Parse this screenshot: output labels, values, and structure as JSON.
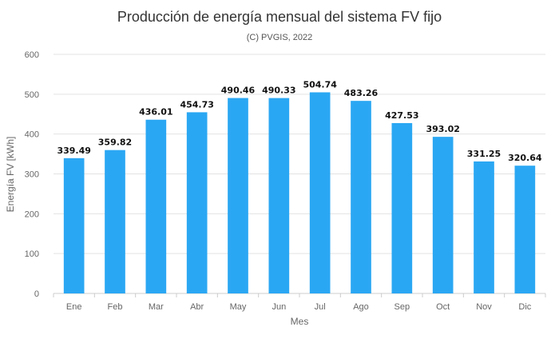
{
  "chart_data": {
    "type": "bar",
    "title": "Producción de energía mensual del sistema FV fijo",
    "subtitle": "(C) PVGIS, 2022",
    "xlabel": "Mes",
    "ylabel": "Energía FV [kWh]",
    "categories": [
      "Ene",
      "Feb",
      "Mar",
      "Abr",
      "May",
      "Jun",
      "Jul",
      "Ago",
      "Sep",
      "Oct",
      "Nov",
      "Dic"
    ],
    "values": [
      339.49,
      359.82,
      436.01,
      454.73,
      490.46,
      490.33,
      504.74,
      483.26,
      427.53,
      393.02,
      331.25,
      320.64
    ],
    "data_labels": [
      "339.49",
      "359.82",
      "436.01",
      "454.73",
      "490.46",
      "490.33",
      "504.74",
      "483.26",
      "427.53",
      "393.02",
      "331.25",
      "320.64"
    ],
    "ylim": [
      0,
      600
    ],
    "yticks": [
      0,
      100,
      200,
      300,
      400,
      500,
      600
    ],
    "grid": true,
    "bar_color": "#2aa7f3"
  }
}
